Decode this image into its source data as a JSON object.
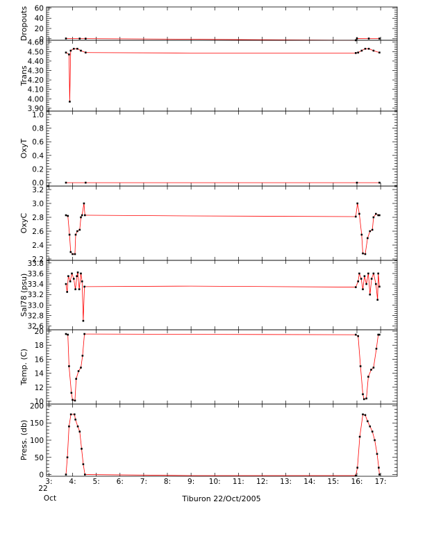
{
  "chart_data": {
    "type": "line",
    "title": "",
    "xlabel": "Tiburon 22/Oct/2005",
    "x_date_label": "22",
    "x_month_label": "Oct",
    "x_ticks": [
      3,
      4,
      5,
      6,
      7,
      8,
      9,
      10,
      11,
      12,
      13,
      14,
      15,
      16,
      17
    ],
    "x_tick_labels": [
      "3:",
      "4:",
      "5:",
      "6:",
      "7:",
      "8:",
      "9:",
      "10:",
      "11:",
      "12:",
      "13:",
      "14:",
      "15:",
      "16:",
      "17:"
    ],
    "xlim": [
      2.9,
      17.7
    ],
    "colors": {
      "connector": "#ff0000",
      "samples": "#000000"
    },
    "panels": [
      {
        "id": "dropouts",
        "ylabel": "Dropouts",
        "ylim": [
          -3,
          62
        ],
        "yticks": [
          0,
          20,
          40,
          60
        ],
        "ytick_labels": [
          "0",
          "20",
          "40",
          "60"
        ],
        "series": [
          {
            "points": [
              [
                3.72,
                0.5
              ],
              [
                4.3,
                0.3
              ],
              [
                4.55,
                0.2
              ],
              [
                9.0,
                -1.0
              ],
              [
                12.0,
                -2.0
              ],
              [
                15.95,
                -3.0
              ],
              [
                16.0,
                0.5
              ],
              [
                16.5,
                0.4
              ],
              [
                16.95,
                0.3
              ]
            ]
          }
        ]
      },
      {
        "id": "trans",
        "ylabel": "Trans",
        "ylim": [
          3.87,
          4.62
        ],
        "yticks": [
          3.9,
          4.0,
          4.1,
          4.2,
          4.3,
          4.4,
          4.5,
          4.6
        ],
        "ytick_labels": [
          "3.90",
          "4.00",
          "4.10",
          "4.20",
          "4.30",
          "4.40",
          "4.50",
          "4.60"
        ],
        "series": [
          {
            "points": [
              [
                3.72,
                4.49
              ],
              [
                3.85,
                4.47
              ],
              [
                3.88,
                3.97
              ],
              [
                3.92,
                4.51
              ],
              [
                4.05,
                4.53
              ],
              [
                4.2,
                4.53
              ],
              [
                4.35,
                4.51
              ],
              [
                4.55,
                4.49
              ],
              [
                9.0,
                4.485
              ],
              [
                15.95,
                4.485
              ],
              [
                16.05,
                4.49
              ],
              [
                16.2,
                4.51
              ],
              [
                16.35,
                4.53
              ],
              [
                16.5,
                4.53
              ],
              [
                16.7,
                4.51
              ],
              [
                16.95,
                4.49
              ]
            ]
          }
        ]
      },
      {
        "id": "oxyt",
        "ylabel": "OxyT",
        "ylim": [
          -0.05,
          1.05
        ],
        "yticks": [
          0.0,
          0.2,
          0.4,
          0.6,
          0.8,
          1.0
        ],
        "ytick_labels": [
          "0.0",
          "0.2",
          "0.4",
          "0.6",
          "0.8",
          "1.0"
        ],
        "series": [
          {
            "points": [
              [
                3.72,
                0.0
              ],
              [
                4.55,
                0.0
              ],
              [
                9.0,
                0.0
              ],
              [
                16.0,
                0.0
              ],
              [
                16.95,
                0.0
              ]
            ]
          }
        ]
      },
      {
        "id": "oxyc",
        "ylabel": "OxyC",
        "ylim": [
          2.18,
          3.25
        ],
        "yticks": [
          2.2,
          2.4,
          2.6,
          2.8,
          3.0,
          3.2
        ],
        "ytick_labels": [
          "2.2",
          "2.4",
          "2.6",
          "2.8",
          "3.0",
          "3.2"
        ],
        "series": [
          {
            "points": [
              [
                3.72,
                2.83
              ],
              [
                3.8,
                2.82
              ],
              [
                3.87,
                2.55
              ],
              [
                3.92,
                2.3
              ],
              [
                4.0,
                2.27
              ],
              [
                4.1,
                2.27
              ],
              [
                4.13,
                2.55
              ],
              [
                4.2,
                2.6
              ],
              [
                4.3,
                2.62
              ],
              [
                4.35,
                2.8
              ],
              [
                4.4,
                2.83
              ],
              [
                4.48,
                3.0
              ],
              [
                4.52,
                2.83
              ],
              [
                9.0,
                2.82
              ],
              [
                15.95,
                2.81
              ],
              [
                16.02,
                3.0
              ],
              [
                16.1,
                2.85
              ],
              [
                16.2,
                2.55
              ],
              [
                16.25,
                2.28
              ],
              [
                16.35,
                2.27
              ],
              [
                16.45,
                2.5
              ],
              [
                16.55,
                2.6
              ],
              [
                16.65,
                2.62
              ],
              [
                16.7,
                2.8
              ],
              [
                16.8,
                2.85
              ],
              [
                16.9,
                2.83
              ],
              [
                16.95,
                2.83
              ]
            ]
          }
        ]
      },
      {
        "id": "sal78",
        "ylabel": "Sal78 (psu)",
        "ylim": [
          32.53,
          33.85
        ],
        "yticks": [
          32.6,
          32.8,
          33.0,
          33.2,
          33.4,
          33.6,
          33.8
        ],
        "ytick_labels": [
          "32.6",
          "32.8",
          "33.0",
          "33.2",
          "33.4",
          "33.6",
          "33.8"
        ],
        "series": [
          {
            "points": [
              [
                3.72,
                33.4
              ],
              [
                3.77,
                33.25
              ],
              [
                3.82,
                33.55
              ],
              [
                3.9,
                33.45
              ],
              [
                3.97,
                33.6
              ],
              [
                4.05,
                33.5
              ],
              [
                4.12,
                33.3
              ],
              [
                4.18,
                33.55
              ],
              [
                4.22,
                33.62
              ],
              [
                4.28,
                33.3
              ],
              [
                4.35,
                33.6
              ],
              [
                4.4,
                33.45
              ],
              [
                4.45,
                32.7
              ],
              [
                4.5,
                33.35
              ],
              [
                9.0,
                33.36
              ],
              [
                15.95,
                33.34
              ],
              [
                16.05,
                33.45
              ],
              [
                16.1,
                33.6
              ],
              [
                16.18,
                33.5
              ],
              [
                16.25,
                33.3
              ],
              [
                16.32,
                33.55
              ],
              [
                16.4,
                33.4
              ],
              [
                16.48,
                33.6
              ],
              [
                16.55,
                33.2
              ],
              [
                16.62,
                33.5
              ],
              [
                16.7,
                33.6
              ],
              [
                16.8,
                33.4
              ],
              [
                16.87,
                33.1
              ],
              [
                16.9,
                33.6
              ],
              [
                16.95,
                33.35
              ]
            ]
          }
        ]
      },
      {
        "id": "temp",
        "ylabel": "Temp. (C)",
        "ylim": [
          9.6,
          20.2
        ],
        "yticks": [
          10,
          12,
          14,
          16,
          18,
          20
        ],
        "ytick_labels": [
          "10",
          "12",
          "14",
          "16",
          "18",
          "20"
        ],
        "series": [
          {
            "points": [
              [
                3.72,
                19.6
              ],
              [
                3.8,
                19.5
              ],
              [
                3.85,
                15.0
              ],
              [
                3.95,
                11.2
              ],
              [
                4.0,
                10.2
              ],
              [
                4.1,
                10.1
              ],
              [
                4.15,
                13.2
              ],
              [
                4.25,
                14.3
              ],
              [
                4.35,
                14.8
              ],
              [
                4.42,
                16.5
              ],
              [
                4.5,
                19.6
              ],
              [
                9.0,
                19.55
              ],
              [
                15.95,
                19.5
              ],
              [
                16.05,
                19.3
              ],
              [
                16.15,
                15.0
              ],
              [
                16.25,
                11.0
              ],
              [
                16.3,
                10.3
              ],
              [
                16.4,
                10.4
              ],
              [
                16.48,
                13.5
              ],
              [
                16.6,
                14.5
              ],
              [
                16.7,
                14.8
              ],
              [
                16.82,
                17.5
              ],
              [
                16.9,
                19.5
              ],
              [
                16.95,
                19.5
              ]
            ]
          }
        ]
      },
      {
        "id": "press",
        "ylabel": "Press. (db)",
        "ylim": [
          -5,
          205
        ],
        "yticks": [
          0,
          50,
          100,
          150,
          200
        ],
        "ytick_labels": [
          "0",
          "50",
          "100",
          "150",
          "200"
        ],
        "series": [
          {
            "points": [
              [
                3.72,
                0
              ],
              [
                3.78,
                50
              ],
              [
                3.85,
                140
              ],
              [
                3.93,
                175
              ],
              [
                4.08,
                175
              ],
              [
                4.12,
                160
              ],
              [
                4.22,
                140
              ],
              [
                4.3,
                125
              ],
              [
                4.38,
                75
              ],
              [
                4.45,
                30
              ],
              [
                4.52,
                0
              ],
              [
                9.0,
                -3
              ],
              [
                15.95,
                -3
              ],
              [
                16.02,
                20
              ],
              [
                16.12,
                110
              ],
              [
                16.25,
                175
              ],
              [
                16.35,
                173
              ],
              [
                16.45,
                155
              ],
              [
                16.55,
                140
              ],
              [
                16.65,
                125
              ],
              [
                16.75,
                100
              ],
              [
                16.85,
                60
              ],
              [
                16.92,
                20
              ],
              [
                16.95,
                0
              ]
            ]
          }
        ]
      }
    ]
  }
}
